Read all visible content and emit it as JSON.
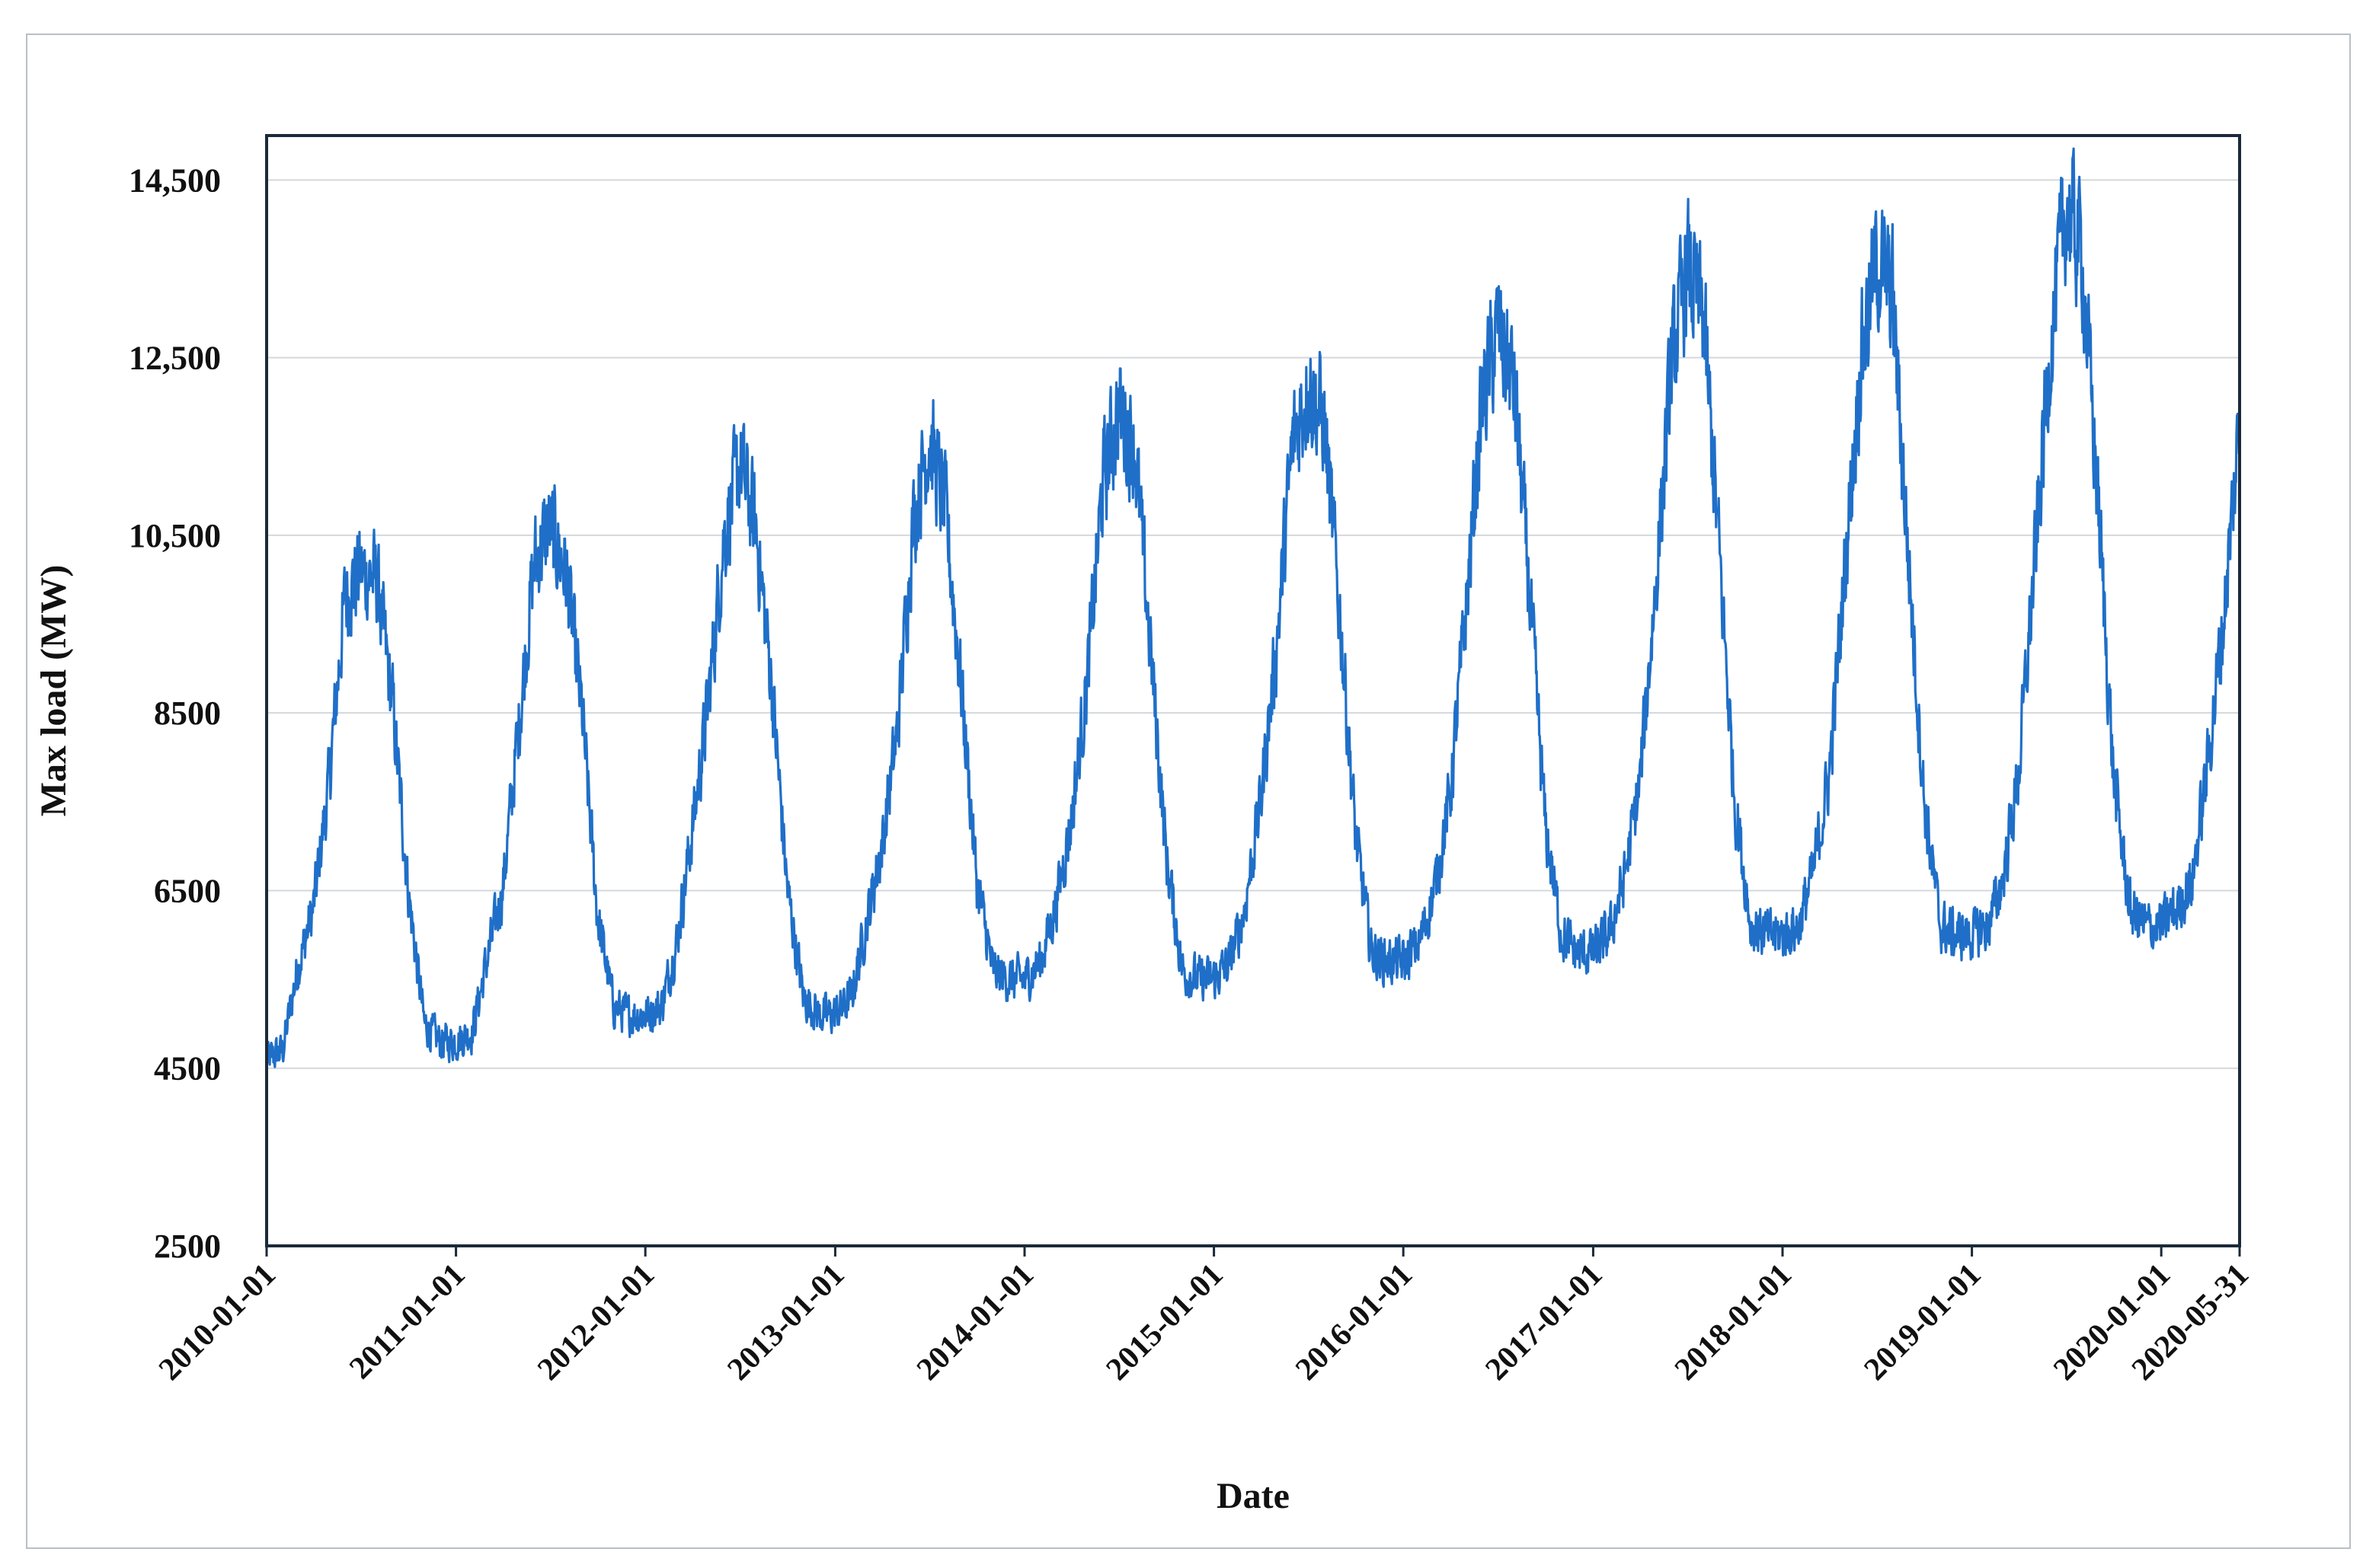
{
  "chart_data": {
    "type": "line",
    "title": "",
    "xlabel": "Date",
    "ylabel": "Max load (MW)",
    "xlim": [
      "2010-01-01",
      "2020-05-31"
    ],
    "ylim": [
      2500,
      15000
    ],
    "yticks": [
      {
        "value": 2500,
        "label": "2500"
      },
      {
        "value": 4500,
        "label": "4500"
      },
      {
        "value": 6500,
        "label": "6500"
      },
      {
        "value": 8500,
        "label": "8500"
      },
      {
        "value": 10500,
        "label": "10,500"
      },
      {
        "value": 12500,
        "label": "12,500"
      },
      {
        "value": 14500,
        "label": "14,500"
      }
    ],
    "xticks": [
      "2010-01-01",
      "2011-01-01",
      "2012-01-01",
      "2013-01-01",
      "2014-01-01",
      "2015-01-01",
      "2016-01-01",
      "2017-01-01",
      "2018-01-01",
      "2019-01-01",
      "2020-01-01",
      "2020-05-31"
    ],
    "grid": {
      "horizontal": true,
      "vertical": false
    },
    "line_color": "#1f6fc8",
    "series": [
      {
        "x": [
          "2010-01-01",
          "2010-02-01",
          "2010-03-01",
          "2010-04-01",
          "2010-05-01",
          "2010-06-01",
          "2010-07-01",
          "2010-08-01",
          "2010-09-01",
          "2010-10-01",
          "2010-11-01",
          "2010-12-01",
          "2011-01-01",
          "2011-02-01",
          "2011-03-01",
          "2011-04-01",
          "2011-05-01",
          "2011-06-01",
          "2011-07-01",
          "2011-08-01",
          "2011-09-01",
          "2011-10-01",
          "2011-11-01",
          "2011-12-01",
          "2012-01-01",
          "2012-02-01",
          "2012-03-01",
          "2012-04-01",
          "2012-05-01",
          "2012-06-01",
          "2012-07-01",
          "2012-08-01",
          "2012-09-01",
          "2012-10-01",
          "2012-11-01",
          "2012-12-01",
          "2013-01-01",
          "2013-02-01",
          "2013-03-01",
          "2013-04-01",
          "2013-05-01",
          "2013-06-01",
          "2013-07-01",
          "2013-08-01",
          "2013-09-01",
          "2013-10-01",
          "2013-11-01",
          "2013-12-01",
          "2014-01-01",
          "2014-02-01",
          "2014-03-01",
          "2014-04-01",
          "2014-05-01",
          "2014-06-01",
          "2014-07-01",
          "2014-08-01",
          "2014-09-01",
          "2014-10-01",
          "2014-11-01",
          "2014-12-01",
          "2015-01-01",
          "2015-02-01",
          "2015-03-01",
          "2015-04-01",
          "2015-05-01",
          "2015-06-01",
          "2015-07-01",
          "2015-08-01",
          "2015-09-01",
          "2015-10-01",
          "2015-11-01",
          "2015-12-01",
          "2016-01-01",
          "2016-02-01",
          "2016-03-01",
          "2016-04-01",
          "2016-05-01",
          "2016-06-01",
          "2016-07-01",
          "2016-08-01",
          "2016-09-01",
          "2016-10-01",
          "2016-11-01",
          "2016-12-01",
          "2017-01-01",
          "2017-02-01",
          "2017-03-01",
          "2017-04-01",
          "2017-05-01",
          "2017-06-01",
          "2017-07-01",
          "2017-08-01",
          "2017-09-01",
          "2017-10-01",
          "2017-11-01",
          "2017-12-01",
          "2018-01-01",
          "2018-02-01",
          "2018-03-01",
          "2018-04-01",
          "2018-05-01",
          "2018-06-01",
          "2018-07-01",
          "2018-08-01",
          "2018-09-01",
          "2018-10-01",
          "2018-11-01",
          "2018-12-01",
          "2019-01-01",
          "2019-02-01",
          "2019-03-01",
          "2019-04-01",
          "2019-05-01",
          "2019-06-01",
          "2019-07-01",
          "2019-08-01",
          "2019-09-01",
          "2019-10-01",
          "2019-11-01",
          "2019-12-01",
          "2020-01-01",
          "2020-02-01",
          "2020-03-01",
          "2020-04-01",
          "2020-05-01",
          "2020-05-31"
        ],
        "values": [
          4600,
          4700,
          5600,
          6300,
          7700,
          9800,
          10100,
          10000,
          8600,
          6500,
          5000,
          4800,
          4800,
          4900,
          5700,
          6500,
          8300,
          10200,
          10600,
          10100,
          8500,
          6200,
          5200,
          5100,
          5100,
          5200,
          5900,
          7200,
          8600,
          10500,
          11300,
          10600,
          8800,
          6500,
          5300,
          5100,
          5100,
          5300,
          6100,
          7000,
          8300,
          10700,
          11600,
          10800,
          8800,
          6600,
          5600,
          5500,
          5500,
          5700,
          6300,
          7300,
          8800,
          11100,
          11900,
          11500,
          9200,
          6900,
          5600,
          5500,
          5500,
          5700,
          6300,
          7500,
          9200,
          11500,
          12200,
          11800,
          9600,
          7100,
          5800,
          5700,
          5700,
          5900,
          6500,
          7600,
          9700,
          12000,
          12800,
          12200,
          9800,
          7200,
          6000,
          5800,
          5800,
          6000,
          6600,
          7700,
          9900,
          12400,
          13500,
          13000,
          10300,
          7500,
          6100,
          6000,
          6000,
          6100,
          6700,
          7800,
          10100,
          12500,
          13600,
          13200,
          10200,
          7500,
          6100,
          6000,
          6000,
          6100,
          6600,
          7800,
          10100,
          12600,
          14200,
          13700,
          10900,
          7800,
          6300,
          6100,
          6100,
          6300,
          6600,
          8000,
          9600,
          11800
        ]
      }
    ]
  }
}
